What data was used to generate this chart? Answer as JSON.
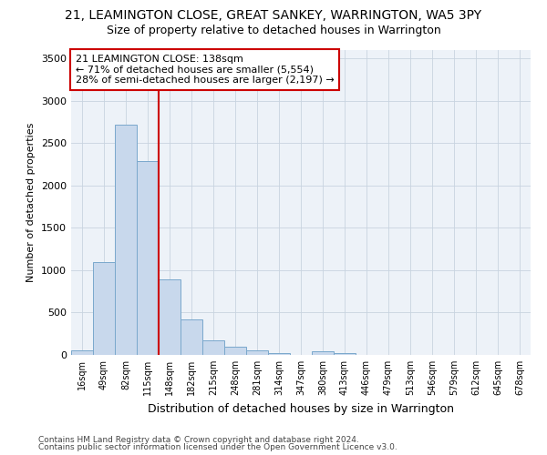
{
  "title1": "21, LEAMINGTON CLOSE, GREAT SANKEY, WARRINGTON, WA5 3PY",
  "title2": "Size of property relative to detached houses in Warrington",
  "xlabel": "Distribution of detached houses by size in Warrington",
  "ylabel": "Number of detached properties",
  "categories": [
    "16sqm",
    "49sqm",
    "82sqm",
    "115sqm",
    "148sqm",
    "182sqm",
    "215sqm",
    "248sqm",
    "281sqm",
    "314sqm",
    "347sqm",
    "380sqm",
    "413sqm",
    "446sqm",
    "479sqm",
    "513sqm",
    "546sqm",
    "579sqm",
    "612sqm",
    "645sqm",
    "678sqm"
  ],
  "values": [
    50,
    1100,
    2720,
    2290,
    890,
    420,
    175,
    95,
    50,
    25,
    0,
    45,
    20,
    0,
    0,
    0,
    0,
    0,
    0,
    0,
    0
  ],
  "bar_color": "#c8d8ec",
  "bar_edge_color": "#7aa8cc",
  "vline_color": "#cc0000",
  "vline_pos": 4,
  "annotation_line1": "21 LEAMINGTON CLOSE: 138sqm",
  "annotation_line2": "← 71% of detached houses are smaller (5,554)",
  "annotation_line3": "28% of semi-detached houses are larger (2,197) →",
  "annotation_box_facecolor": "#ffffff",
  "annotation_box_edgecolor": "#cc0000",
  "ylim": [
    0,
    3600
  ],
  "yticks": [
    0,
    500,
    1000,
    1500,
    2000,
    2500,
    3000,
    3500
  ],
  "footer1": "Contains HM Land Registry data © Crown copyright and database right 2024.",
  "footer2": "Contains public sector information licensed under the Open Government Licence v3.0.",
  "fig_facecolor": "#ffffff",
  "plot_facecolor": "#edf2f8",
  "grid_color": "#c8d4e0",
  "title1_fontsize": 10,
  "title2_fontsize": 9
}
